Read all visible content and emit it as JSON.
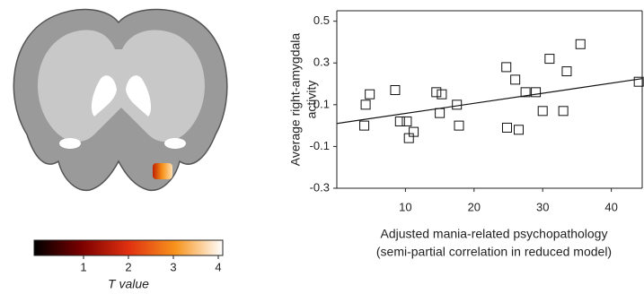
{
  "chart_data": [
    {
      "type": "colorbar",
      "label": "T value",
      "clim": [
        -0.1,
        4.1
      ],
      "ticks": [
        1,
        2,
        3,
        4
      ],
      "colors": [
        "#000000",
        "#7a0000",
        "#e03010",
        "#f7941d",
        "#ffffff"
      ]
    },
    {
      "type": "scatter",
      "ylabel": [
        "Average right-amygdala",
        "activity"
      ],
      "xlabel": [
        "Adjusted mania-related psychopathology",
        "(semi-partial correlation in reduced model)"
      ],
      "xlim": [
        0,
        44.5
      ],
      "ylim": [
        -0.3,
        0.55
      ],
      "xticks": [
        10,
        20,
        30,
        40
      ],
      "yticks": [
        -0.3,
        -0.1,
        0.1,
        0.3,
        0.5
      ],
      "x": [
        4,
        4.2,
        4.8,
        8.5,
        9.2,
        10.2,
        10.5,
        11.2,
        14.5,
        15,
        15.3,
        17.5,
        17.8,
        24.7,
        24.8,
        26,
        26.5,
        27.5,
        29,
        30,
        31,
        33,
        33.5,
        35.5,
        44
      ],
      "values": [
        0.0,
        0.1,
        0.15,
        0.17,
        0.02,
        0.02,
        -0.06,
        -0.03,
        0.16,
        0.06,
        0.15,
        0.1,
        0.0,
        0.28,
        -0.01,
        0.22,
        -0.02,
        0.16,
        0.16,
        0.07,
        0.32,
        0.07,
        0.26,
        0.39,
        0.21
      ],
      "trend_line": {
        "x": [
          0,
          44.5
        ],
        "y": [
          0.01,
          0.225
        ]
      }
    }
  ]
}
